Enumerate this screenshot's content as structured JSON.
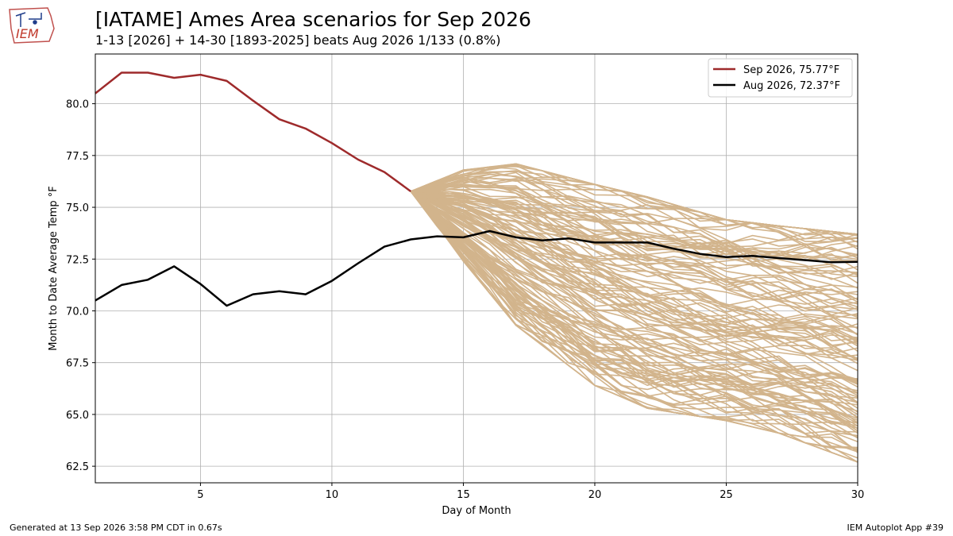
{
  "header": {
    "title": "[IATAME] Ames Area scenarios for Sep 2026",
    "subtitle": "1-13 [2026] + 14-30 [1893-2025] beats Aug 2026 1/133 (0.8%)",
    "logo_text": "IEM"
  },
  "footer": {
    "generated": "Generated at 13 Sep 2026 3:58 PM CDT in 0.67s",
    "app": "IEM Autoplot App #39"
  },
  "colors": {
    "sep": "#9e2a2b",
    "aug": "#000000",
    "scenario": "#d2b48c",
    "grid": "#b0b0b0"
  },
  "chart_data": {
    "type": "line",
    "xlabel": "Day of Month",
    "ylabel": "Month to Date Average Temp °F",
    "xlim": [
      1,
      30
    ],
    "ylim": [
      61.7,
      82.4
    ],
    "xticks": [
      5,
      10,
      15,
      20,
      25,
      30
    ],
    "yticks": [
      62.5,
      65.0,
      67.5,
      70.0,
      72.5,
      75.0,
      77.5,
      80.0
    ],
    "grid": true,
    "legend_position": "top-right",
    "legend": [
      {
        "label": "Sep 2026, 75.77°F",
        "series": "sep"
      },
      {
        "label": "Aug 2026, 72.37°F",
        "series": "aug"
      }
    ],
    "series": [
      {
        "name": "Sep 2026",
        "x": [
          1,
          2,
          3,
          4,
          5,
          6,
          7,
          8,
          9,
          10,
          11,
          12,
          13
        ],
        "values": [
          80.5,
          81.5,
          81.5,
          81.25,
          81.4,
          81.1,
          80.15,
          79.25,
          78.8,
          78.1,
          77.3,
          76.7,
          75.77
        ]
      },
      {
        "name": "Aug 2026",
        "x": [
          1,
          2,
          3,
          4,
          5,
          6,
          7,
          8,
          9,
          10,
          11,
          12,
          13,
          14,
          15,
          16,
          17,
          18,
          19,
          20,
          21,
          22,
          23,
          24,
          25,
          26,
          27,
          28,
          29,
          30
        ],
        "values": [
          70.5,
          71.25,
          71.5,
          72.15,
          71.3,
          70.25,
          70.8,
          70.95,
          70.8,
          71.45,
          72.3,
          73.1,
          73.45,
          73.6,
          73.55,
          73.85,
          73.55,
          73.4,
          73.5,
          73.3,
          73.3,
          73.3,
          73.0,
          72.75,
          72.6,
          72.65,
          72.55,
          72.45,
          72.35,
          72.37
        ]
      }
    ],
    "scenarios": {
      "count": 133,
      "start_day": 13,
      "end_day": 30,
      "start_value": 75.77,
      "end_min": 62.7,
      "end_max": 73.7,
      "envelope": {
        "x": [
          13,
          15,
          17,
          20,
          22,
          25,
          27,
          30
        ],
        "upper": [
          75.77,
          76.8,
          77.1,
          76.1,
          75.5,
          74.4,
          74.1,
          73.7
        ],
        "lower": [
          75.77,
          72.4,
          69.3,
          66.4,
          65.3,
          64.7,
          64.1,
          62.7
        ]
      }
    }
  }
}
